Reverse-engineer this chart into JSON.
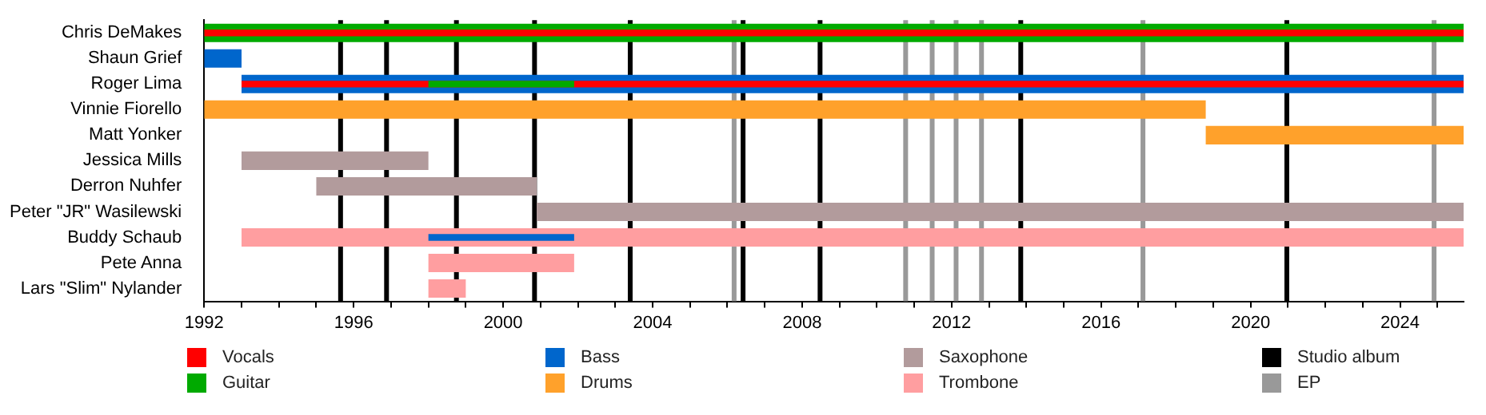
{
  "chart_data": {
    "type": "bar",
    "orientation": "horizontal",
    "legend": "bottom",
    "categories": [
      "Chris DeMakes",
      "Shaun Grief",
      "Roger Lima",
      "Vinnie Fiorello",
      "Matt Yonker",
      "Jessica Mills",
      "Derron Nuhfer",
      "Peter \"JR\" Wasilewski",
      "Buddy Schaub",
      "Pete Anna",
      "Lars \"Slim\" Nylander"
    ],
    "xlim": [
      1992,
      2025.7
    ],
    "xticks": [
      1992,
      {
        "value": 1993,
        "label": null
      },
      {
        "value": 1994,
        "label": null
      },
      {
        "value": 1995,
        "label": null
      },
      1996,
      {
        "value": 1997,
        "label": null
      },
      {
        "value": 1998,
        "label": null
      },
      {
        "value": 1999,
        "label": null
      },
      2000,
      {
        "value": 2001,
        "label": null
      },
      {
        "value": 2002,
        "label": null
      },
      {
        "value": 2003,
        "label": null
      },
      2004,
      {
        "value": 2005,
        "label": null
      },
      {
        "value": 2006,
        "label": null
      },
      {
        "value": 2007,
        "label": null
      },
      2008,
      {
        "value": 2009,
        "label": null
      },
      {
        "value": 2010,
        "label": null
      },
      {
        "value": 2011,
        "label": null
      },
      2012,
      {
        "value": 2013,
        "label": null
      },
      {
        "value": 2014,
        "label": null
      },
      {
        "value": 2015,
        "label": null
      },
      2016,
      {
        "value": 2017,
        "label": null
      },
      {
        "value": 2018,
        "label": null
      },
      {
        "value": 2019,
        "label": null
      },
      2020,
      {
        "value": 2021,
        "label": null
      },
      {
        "value": 2022,
        "label": null
      },
      {
        "value": 2023,
        "label": null
      },
      2024,
      {
        "value": 2025,
        "label": null
      }
    ],
    "series": [
      {
        "name": "Vocals",
        "color": "#ff0000",
        "base": [
          1992,
          null,
          1993,
          null,
          null,
          null,
          null,
          null,
          null,
          null,
          null
        ],
        "values": [
          33.7,
          null,
          32.7,
          null,
          null,
          null,
          null,
          null,
          null,
          null,
          null
        ]
      },
      {
        "name": "Guitar",
        "color": "#00aa00",
        "base": [
          1992,
          null,
          1998,
          null,
          null,
          null,
          null,
          null,
          null,
          null,
          null
        ],
        "values": [
          33.7,
          null,
          3.9,
          null,
          null,
          null,
          null,
          null,
          null,
          null,
          null
        ]
      },
      {
        "name": "Bass",
        "color": "#0066cc",
        "base": [
          null,
          1992,
          1993,
          null,
          null,
          null,
          null,
          null,
          1998,
          null,
          null
        ],
        "values": [
          null,
          1,
          32.7,
          null,
          null,
          null,
          null,
          null,
          3.9,
          null,
          null
        ]
      },
      {
        "name": "Drums",
        "color": "#ffa12b",
        "base": [
          null,
          null,
          null,
          1992,
          2018.8,
          null,
          null,
          null,
          null,
          null,
          null
        ],
        "values": [
          null,
          null,
          null,
          26.8,
          6.9,
          null,
          null,
          null,
          null,
          null,
          null
        ]
      },
      {
        "name": "Saxophone",
        "color": "#b29b9c",
        "base": [
          null,
          null,
          null,
          null,
          null,
          1993,
          1995,
          2000.9,
          null,
          null,
          null
        ],
        "values": [
          null,
          null,
          null,
          null,
          null,
          5,
          5.9,
          24.8,
          null,
          null,
          null
        ]
      },
      {
        "name": "Trombone",
        "color": "#ff9ea0",
        "base": [
          null,
          null,
          null,
          null,
          null,
          null,
          null,
          null,
          1993,
          1998,
          1998
        ],
        "values": [
          null,
          null,
          null,
          null,
          null,
          null,
          null,
          null,
          32.7,
          3.9,
          1
        ]
      }
    ],
    "ref_lines": [
      {
        "axis": "x",
        "value": 1995.65,
        "label": "Studio album",
        "color": "#000000"
      },
      {
        "axis": "x",
        "value": 1996.88,
        "color": "#000000"
      },
      {
        "axis": "x",
        "value": 1998.75,
        "color": "#000000"
      },
      {
        "axis": "x",
        "value": 2000.84,
        "color": "#000000"
      },
      {
        "axis": "x",
        "value": 2003.4,
        "color": "#000000"
      },
      {
        "axis": "x",
        "value": 2006.42,
        "color": "#000000"
      },
      {
        "axis": "x",
        "value": 2008.48,
        "color": "#000000"
      },
      {
        "axis": "x",
        "value": 2013.85,
        "color": "#000000"
      },
      {
        "axis": "x",
        "value": 2020.97,
        "color": "#000000"
      },
      {
        "axis": "x",
        "value": 2006.18,
        "label": "EP",
        "color": "#999999"
      },
      {
        "axis": "x",
        "value": 2010.77,
        "color": "#999999"
      },
      {
        "axis": "x",
        "value": 2011.48,
        "color": "#999999"
      },
      {
        "axis": "x",
        "value": 2012.12,
        "color": "#999999"
      },
      {
        "axis": "x",
        "value": 2012.8,
        "color": "#999999"
      },
      {
        "axis": "x",
        "value": 2017.12,
        "color": "#999999"
      },
      {
        "axis": "x",
        "value": 2024.91,
        "color": "#999999"
      }
    ]
  }
}
